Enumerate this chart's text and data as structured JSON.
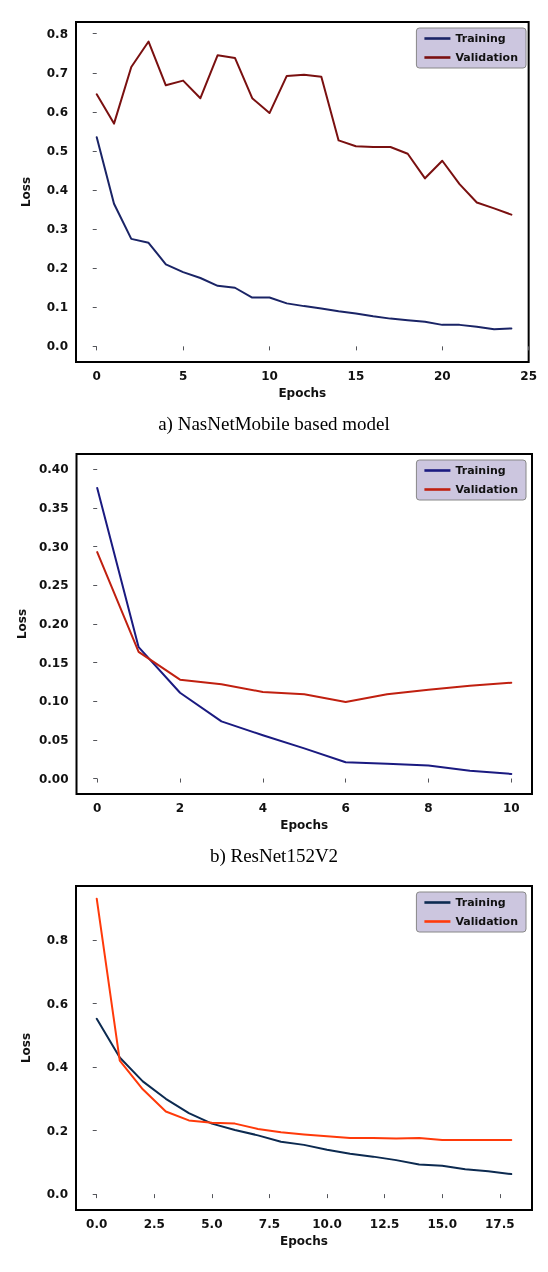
{
  "chart_data": [
    {
      "type": "line",
      "title": "a) NasNetMobile based model",
      "xlabel": "Epochs",
      "ylabel": "Loss",
      "x": [
        0,
        1,
        2,
        3,
        4,
        5,
        6,
        7,
        8,
        9,
        10,
        11,
        12,
        13,
        14,
        15,
        16,
        17,
        18,
        19,
        20,
        21,
        22,
        23,
        24
      ],
      "xlim": [
        -1.2,
        25
      ],
      "xticks": [
        0,
        5,
        10,
        15,
        20,
        25
      ],
      "ylim": [
        -0.04,
        0.83
      ],
      "yticks": [
        {
          "value": 0,
          "label": "0.0"
        },
        0.1,
        0.2,
        0.3,
        0.4,
        0.5,
        0.6,
        0.7,
        0.8
      ],
      "grid": false,
      "legend": "top right",
      "line_style": "solid",
      "marker": "none",
      "series": [
        {
          "name": "Training",
          "color": "#1a2466",
          "values": [
            0.535,
            0.365,
            0.275,
            0.265,
            0.21,
            0.19,
            0.175,
            0.155,
            0.15,
            0.125,
            0.125,
            0.11,
            0.103,
            0.097,
            0.09,
            0.084,
            0.077,
            0.071,
            0.067,
            0.063,
            0.055,
            0.055,
            0.05,
            0.044,
            0.046
          ]
        },
        {
          "name": "Validation",
          "color": "#7a1010",
          "values": [
            0.645,
            0.57,
            0.715,
            0.78,
            0.668,
            0.68,
            0.635,
            0.745,
            0.738,
            0.635,
            0.597,
            0.692,
            0.695,
            0.69,
            0.527,
            0.512,
            0.51,
            0.51,
            0.493,
            0.43,
            0.475,
            0.415,
            0.368,
            0.353,
            0.337
          ]
        }
      ]
    },
    {
      "type": "line",
      "title": "b) ResNet152V2",
      "xlabel": "Epochs",
      "ylabel": "Loss",
      "x": [
        0,
        1,
        2,
        3,
        4,
        5,
        6,
        7,
        8,
        9,
        10
      ],
      "xlim": [
        -0.5,
        10.5
      ],
      "xticks": [
        0,
        2,
        4,
        6,
        8,
        10
      ],
      "ylim": [
        -0.02,
        0.42
      ],
      "yticks": [
        {
          "value": 0,
          "label": "0.00"
        },
        0.05,
        {
          "value": 0.1,
          "label": "0.10"
        },
        0.15,
        {
          "value": 0.2,
          "label": "0.20"
        },
        0.25,
        {
          "value": 0.3,
          "label": "0.30"
        },
        0.35,
        {
          "value": 0.4,
          "label": "0.40"
        }
      ],
      "grid": false,
      "legend": "top right",
      "line_style": "solid",
      "marker": "none",
      "series": [
        {
          "name": "Training",
          "color": "#1a1a80",
          "values": [
            0.376,
            0.17,
            0.111,
            0.074,
            0.056,
            0.039,
            0.021,
            0.019,
            0.017,
            0.01,
            0.006
          ]
        },
        {
          "name": "Validation",
          "color": "#c02010",
          "values": [
            0.293,
            0.164,
            0.128,
            0.122,
            0.112,
            0.109,
            0.099,
            0.109,
            0.115,
            0.12,
            0.124
          ]
        }
      ]
    },
    {
      "type": "line",
      "xlabel": "Epochs",
      "ylabel": "Loss",
      "x": [
        0,
        1,
        2,
        3,
        4,
        5,
        6,
        7,
        8,
        9,
        10,
        11,
        12,
        13,
        14,
        15,
        16,
        17,
        18
      ],
      "xlim": [
        -0.9,
        18.9
      ],
      "xticks": [
        {
          "value": 0,
          "label": "0.0"
        },
        2.5,
        {
          "value": 5,
          "label": "5.0"
        },
        7.5,
        {
          "value": 10,
          "label": "10.0"
        },
        12.5,
        {
          "value": 15,
          "label": "15.0"
        },
        17.5
      ],
      "ylim": [
        -0.05,
        0.97
      ],
      "yticks": [
        {
          "value": 0,
          "label": "0.0"
        },
        0.2,
        0.4,
        0.6,
        0.8
      ],
      "grid": false,
      "legend": "top right",
      "line_style": "solid",
      "marker": "none",
      "series": [
        {
          "name": "Training",
          "color": "#0c2a50",
          "values": [
            0.552,
            0.43,
            0.355,
            0.3,
            0.255,
            0.222,
            0.202,
            0.185,
            0.165,
            0.155,
            0.14,
            0.127,
            0.118,
            0.107,
            0.093,
            0.089,
            0.078,
            0.072,
            0.063
          ]
        },
        {
          "name": "Validation",
          "color": "#ff3a0a",
          "values": [
            0.93,
            0.42,
            0.33,
            0.26,
            0.232,
            0.225,
            0.222,
            0.205,
            0.195,
            0.188,
            0.182,
            0.177,
            0.177,
            0.175,
            0.177,
            0.17,
            0.17,
            0.17,
            0.17
          ]
        }
      ]
    }
  ]
}
